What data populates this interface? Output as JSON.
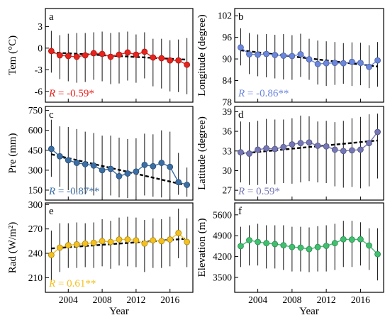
{
  "chart_data": [
    {
      "id": "a",
      "type": "line",
      "letter": "a",
      "ylabel": "Tem (°C)",
      "ylim": [
        -7.5,
        5.5
      ],
      "yticks": [
        -6,
        -3,
        0,
        3
      ],
      "xlim": [
        2001.3,
        2018.7
      ],
      "xticks": [
        2004,
        2008,
        2012,
        2016
      ],
      "x": [
        2002,
        2003,
        2004,
        2005,
        2006,
        2007,
        2008,
        2009,
        2010,
        2011,
        2012,
        2013,
        2014,
        2015,
        2016,
        2017,
        2018
      ],
      "values": [
        -0.4,
        -1.0,
        -1.1,
        -1.2,
        -1.0,
        -0.7,
        -0.8,
        -1.2,
        -0.9,
        -0.6,
        -0.9,
        -0.5,
        -1.3,
        -1.4,
        -1.7,
        -1.7,
        -2.3
      ],
      "err_low": [
        -3.4,
        -4.3,
        -4.6,
        -4.8,
        -4.7,
        -4.4,
        -4.6,
        -5.0,
        -4.9,
        -4.5,
        -4.8,
        -4.2,
        -5.3,
        -5.6,
        -6.0,
        -6.1,
        -6.4
      ],
      "err_high": [
        2.4,
        1.8,
        2.0,
        2.1,
        2.1,
        2.2,
        2.3,
        2.1,
        2.2,
        2.3,
        1.9,
        2.2,
        1.3,
        1.3,
        1.1,
        1.2,
        1.4
      ],
      "trend": [
        -0.6,
        -1.6
      ],
      "color": "#e8231d",
      "corr_r": "R",
      "corr_eq": " = ",
      "corr_value": "-0.59*"
    },
    {
      "id": "b",
      "type": "line",
      "letter": "b",
      "ylabel": "Longitude (degree)",
      "ylim": [
        78,
        104
      ],
      "yticks": [
        78,
        84,
        90,
        96,
        102
      ],
      "xlim": [
        2001.3,
        2018.7
      ],
      "xticks": [
        2004,
        2008,
        2012,
        2016
      ],
      "x": [
        2002,
        2003,
        2004,
        2005,
        2006,
        2007,
        2008,
        2009,
        2010,
        2011,
        2012,
        2013,
        2014,
        2015,
        2016,
        2017,
        2018
      ],
      "values": [
        93.2,
        91.3,
        91.2,
        91.4,
        91.1,
        90.9,
        90.8,
        91.3,
        89.9,
        88.6,
        88.8,
        88.9,
        88.8,
        89.2,
        88.9,
        87.8,
        89.6
      ],
      "err_low": [
        88.2,
        85.8,
        85.2,
        84.9,
        84.6,
        84.3,
        84.2,
        85.0,
        84.2,
        82.9,
        82.5,
        82.8,
        83.1,
        82.5,
        82.7,
        81.9,
        82.3
      ],
      "err_high": [
        98.5,
        97.2,
        96.8,
        96.9,
        96.7,
        96.9,
        96.6,
        97.0,
        95.6,
        95.1,
        94.9,
        94.7,
        94.4,
        94.6,
        94.5,
        93.8,
        94.7
      ],
      "trend": [
        92.4,
        87.9
      ],
      "color": "#6b86dd",
      "corr_r": "R",
      "corr_eq": " = ",
      "corr_value": "-0.86**"
    },
    {
      "id": "c",
      "type": "line",
      "letter": "c",
      "ylabel": "Pre (mm)",
      "ylim": [
        75,
        780
      ],
      "yticks": [
        150,
        300,
        450,
        600,
        750
      ],
      "xlim": [
        2001.3,
        2018.7
      ],
      "xticks": [
        2004,
        2008,
        2012,
        2016
      ],
      "x": [
        2002,
        2003,
        2004,
        2005,
        2006,
        2007,
        2008,
        2009,
        2010,
        2011,
        2012,
        2013,
        2014,
        2015,
        2016,
        2017,
        2018
      ],
      "values": [
        460,
        405,
        375,
        355,
        345,
        335,
        300,
        310,
        255,
        275,
        290,
        340,
        330,
        355,
        325,
        210,
        190
      ],
      "err_low": [
        250,
        175,
        150,
        130,
        120,
        110,
        100,
        110,
        95,
        90,
        100,
        110,
        100,
        95,
        100,
        115,
        100
      ],
      "err_high": [
        680,
        630,
        625,
        610,
        590,
        580,
        560,
        560,
        545,
        535,
        540,
        575,
        570,
        600,
        590,
        430,
        320
      ],
      "trend": [
        420,
        185
      ],
      "color": "#3a6ea5",
      "corr_r": "R",
      "corr_eq": " = ",
      "corr_value": "-0.87**"
    },
    {
      "id": "d",
      "type": "line",
      "letter": "d",
      "ylabel": "Latitude (degree)",
      "ylim": [
        25.5,
        39.8
      ],
      "yticks": [
        27,
        30,
        33,
        36,
        39
      ],
      "xlim": [
        2001.3,
        2018.7
      ],
      "xticks": [
        2004,
        2008,
        2012,
        2016
      ],
      "x": [
        2002,
        2003,
        2004,
        2005,
        2006,
        2007,
        2008,
        2009,
        2010,
        2011,
        2012,
        2013,
        2014,
        2015,
        2016,
        2017,
        2018
      ],
      "values": [
        32.8,
        32.6,
        33.2,
        33.4,
        33.3,
        33.6,
        34.0,
        34.2,
        34.3,
        33.8,
        33.7,
        33.2,
        33.0,
        33.1,
        33.2,
        34.2,
        35.9
      ],
      "err_low": [
        28.2,
        27.8,
        27.8,
        28.0,
        27.9,
        28.1,
        28.0,
        28.2,
        28.4,
        28.2,
        28.1,
        27.6,
        27.4,
        27.5,
        27.3,
        27.6,
        28.8
      ],
      "err_high": [
        37.5,
        37.4,
        37.6,
        37.9,
        37.8,
        37.8,
        38.0,
        38.4,
        38.3,
        37.5,
        37.6,
        37.4,
        37.6,
        38.0,
        38.2,
        38.6,
        38.7
      ],
      "trend": [
        32.6,
        34.6
      ],
      "color": "#7576b5",
      "corr_r": "R",
      "corr_eq": " = ",
      "corr_value": "0.59*"
    },
    {
      "id": "e",
      "type": "line",
      "letter": "e",
      "ylabel": "Rad (W/m²)",
      "ylim": [
        192,
        302
      ],
      "yticks": [
        210,
        240,
        270,
        300
      ],
      "xlim": [
        2001.3,
        2018.7
      ],
      "xticks": [
        2004,
        2008,
        2012,
        2016
      ],
      "x": [
        2002,
        2003,
        2004,
        2005,
        2006,
        2007,
        2008,
        2009,
        2010,
        2011,
        2012,
        2013,
        2014,
        2015,
        2016,
        2017,
        2018
      ],
      "values": [
        238,
        247,
        250,
        251,
        252,
        253,
        255,
        254,
        257,
        257,
        256,
        252,
        256,
        255,
        257,
        265,
        254
      ],
      "err_low": [
        205,
        217,
        222,
        222,
        223,
        222,
        224,
        221,
        225,
        224,
        223,
        217,
        222,
        222,
        224,
        234,
        223
      ],
      "err_high": [
        268,
        277,
        277,
        278,
        277,
        278,
        282,
        280,
        284,
        285,
        284,
        281,
        283,
        282,
        285,
        295,
        283
      ],
      "trend": [
        246,
        258
      ],
      "color": "#f4c01e",
      "corr_r": "R",
      "corr_eq": " = ",
      "corr_value": "0.61**"
    },
    {
      "id": "f",
      "type": "line",
      "letter": "f",
      "ylabel": "Elevation (m)",
      "ylim": [
        3000,
        6000
      ],
      "yticks": [
        3500,
        4200,
        4900,
        5600
      ],
      "xlim": [
        2001.3,
        2018.7
      ],
      "xticks": [
        2004,
        2008,
        2012,
        2016
      ],
      "x": [
        2002,
        2003,
        2004,
        2005,
        2006,
        2007,
        2008,
        2009,
        2010,
        2011,
        2012,
        2013,
        2014,
        2015,
        2016,
        2017,
        2018
      ],
      "values": [
        4550,
        4750,
        4690,
        4650,
        4620,
        4580,
        4520,
        4500,
        4450,
        4520,
        4560,
        4650,
        4780,
        4770,
        4780,
        4570,
        4280
      ],
      "err_low": [
        3850,
        3900,
        3900,
        3800,
        3800,
        3750,
        3700,
        3700,
        3680,
        3700,
        3700,
        3750,
        3850,
        3850,
        3900,
        3750,
        3400
      ],
      "err_high": [
        5200,
        5250,
        5300,
        5250,
        5250,
        5250,
        5200,
        5200,
        5180,
        5220,
        5250,
        5300,
        5400,
        5400,
        5350,
        5150,
        5150
      ],
      "trend": null,
      "color": "#3fc06f",
      "corr_r": "",
      "corr_eq": "",
      "corr_value": ""
    }
  ],
  "xlabel": "Year"
}
